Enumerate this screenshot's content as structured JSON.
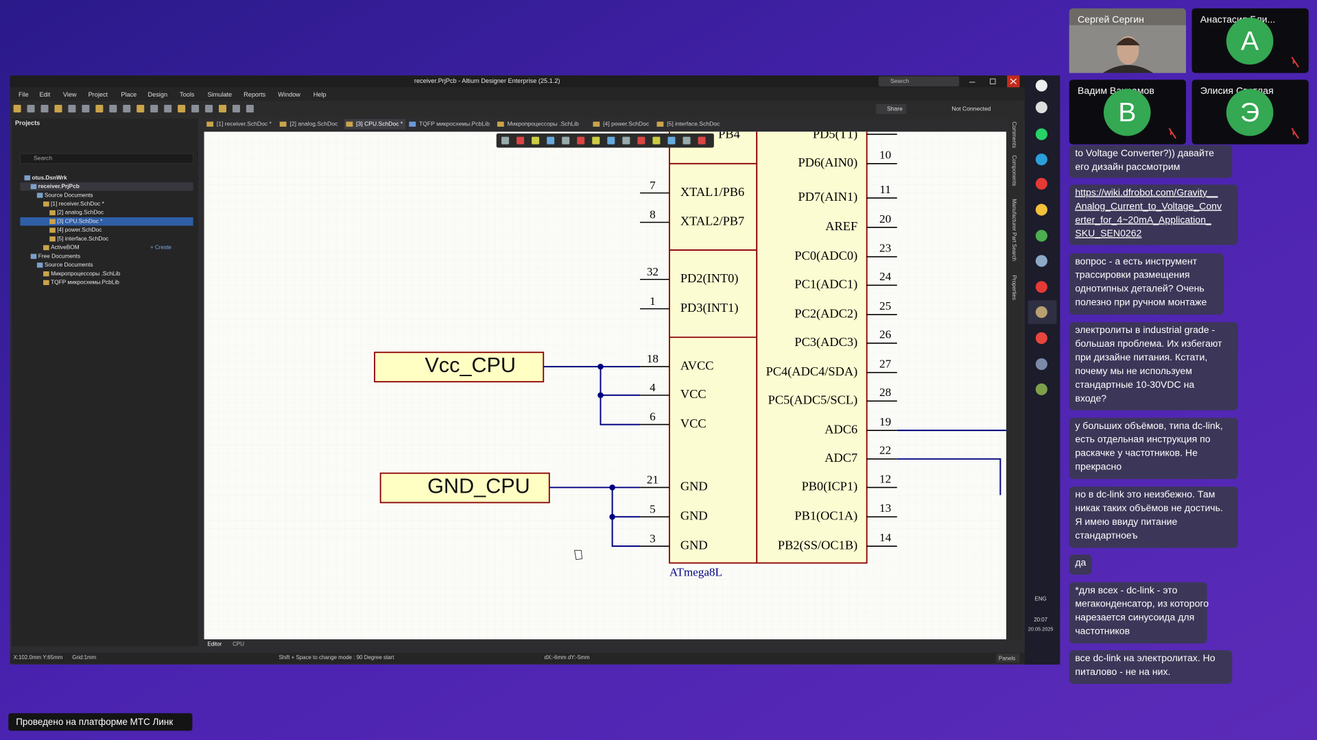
{
  "window": {
    "title": "receiver.PrjPcb - Altium Designer Enterprise (25.1.2)",
    "search": "Search",
    "menu": [
      "File",
      "Edit",
      "View",
      "Project",
      "Place",
      "Design",
      "Tools",
      "Simulate",
      "Reports",
      "Window",
      "Help"
    ],
    "share": "Share",
    "connection": "Not Connected"
  },
  "tabs": [
    "[1] receiver.SchDoc *",
    "[2] analog.SchDoc",
    "[3] CPU.SchDoc *",
    "TQFP микросхемы.PcbLib",
    "Микропроцессоры .SchLib",
    "[4] power.SchDoc",
    "[5] interface.SchDoc"
  ],
  "projects": {
    "title": "Projects",
    "search": "Search",
    "tree": [
      "otus.DsnWrk",
      "receiver.PrjPcb",
      "Source Documents",
      "[1] receiver.SchDoc *",
      "[2] analog.SchDoc",
      "[3] CPU.SchDoc *",
      "[4] power.SchDoc",
      "[5] interface.SchDoc",
      "ActiveBOM",
      "Free Documents",
      "Source Documents",
      "Микропроцессоры .SchLib",
      "TQFP микросхемы.PcbLib"
    ],
    "create": "+ Create"
  },
  "schematic": {
    "part": "ATmega8L",
    "ports": [
      "Vcc_CPU",
      "GND_CPU"
    ],
    "top_left_partial": "PB4",
    "top_right_partial": "PD5(T1)",
    "left_pins": [
      {
        "num": "7",
        "name": "XTAL1/PB6"
      },
      {
        "num": "8",
        "name": "XTAL2/PB7"
      },
      {
        "num": "32",
        "name": "PD2(INT0)"
      },
      {
        "num": "1",
        "name": "PD3(INT1)"
      },
      {
        "num": "18",
        "name": "AVCC"
      },
      {
        "num": "4",
        "name": "VCC"
      },
      {
        "num": "6",
        "name": "VCC"
      },
      {
        "num": "21",
        "name": "GND"
      },
      {
        "num": "5",
        "name": "GND"
      },
      {
        "num": "3",
        "name": "GND"
      }
    ],
    "right_pins": [
      {
        "num": "10",
        "name": "PD6(AIN0)"
      },
      {
        "num": "11",
        "name": "PD7(AIN1)"
      },
      {
        "num": "20",
        "name": "AREF"
      },
      {
        "num": "23",
        "name": "PC0(ADC0)"
      },
      {
        "num": "24",
        "name": "PC1(ADC1)"
      },
      {
        "num": "25",
        "name": "PC2(ADC2)"
      },
      {
        "num": "26",
        "name": "PC3(ADC3)"
      },
      {
        "num": "27",
        "name": "PC4(ADC4/SDA)"
      },
      {
        "num": "28",
        "name": "PC5(ADC5/SCL)"
      },
      {
        "num": "19",
        "name": "ADC6"
      },
      {
        "num": "22",
        "name": "ADC7"
      },
      {
        "num": "12",
        "name": "PB0(ICP1)"
      },
      {
        "num": "13",
        "name": "PB1(OC1A)"
      },
      {
        "num": "14",
        "name": "PB2(SS/OC1B)"
      }
    ]
  },
  "editor_tabs": [
    "Editor",
    "CPU"
  ],
  "status": {
    "coords": "X:102.0mm Y:65mm",
    "grid": "Grid:1mm",
    "hint": "Shift + Space to change mode : 90 Degree start",
    "delta": "dX:-6mm dY:-5mm",
    "panels": "Panels"
  },
  "side_panels": [
    "Comments",
    "Components",
    "Manufacturer Part Search",
    "Properties"
  ],
  "taskbar": {
    "lang": "ENG",
    "time": "20:07",
    "date": "20.05.2025"
  },
  "participants": [
    {
      "name": "Сергей Сергин"
    },
    {
      "name": "Анастасия Бли...",
      "initial": "А"
    },
    {
      "name": "Вадим Вахрамов",
      "initial": "В"
    },
    {
      "name": "Элисия Светлая",
      "initial": "Э"
    }
  ],
  "chat": [
    [
      "to Voltage Converter?)) давайте",
      "его дизайн рассмотрим"
    ],
    [
      "https://wiki.dfrobot.com/Gravity__",
      "Analog_Current_to_Voltage_Conv",
      "erter_for_4~20mA_Application_",
      "SKU_SEN0262"
    ],
    [
      "вопрос - а есть инструмент",
      "трассировки размещения",
      "однотипных деталей? Очень",
      "полезно при ручном монтаже"
    ],
    [
      "электролиты в industrial grade -",
      "большая проблема. Их избегают",
      "при дизайне питания. Кстати,",
      "почему мы не используем",
      "стандартные 10-30VDC на",
      "входе?"
    ],
    [
      "у больших объёмов, типа dc-link,",
      "есть отдельная инструкция по",
      "раскачке у частотников. Не",
      "прекрасно"
    ],
    [
      "но в dc-link это неизбежно. Там",
      "никак таких объёмов не достичь.",
      "Я имею ввиду питание",
      "стандартноеъ"
    ],
    [
      "да"
    ],
    [
      "*для всех - dc-link - это",
      "мегаконденсатор, из которого",
      "нарезается синусоида для",
      "частотников"
    ],
    [
      "все dc-link на электролитах. Но",
      "питалово - не на них."
    ]
  ],
  "footer": "Проведено на платформе МТС Линк"
}
